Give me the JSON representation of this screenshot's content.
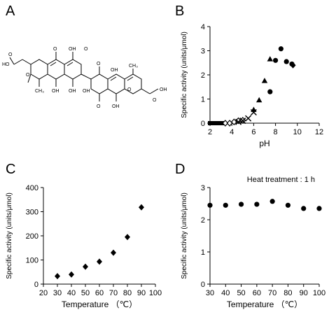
{
  "panels": {
    "a": "A",
    "b": "B",
    "c": "C",
    "d": "D"
  },
  "molecule": {
    "atoms": {
      "o_top_1": "O",
      "oh_1": "OH",
      "oh_2": "OH",
      "oh_3": "OH",
      "o_ring_left": "O",
      "o_bottom_1": "O",
      "o_top_2": "O",
      "o_bottom_2": "O",
      "oh_4": "OH",
      "oh_5": "OH",
      "o_ring_right": "O",
      "acid_left": "HO",
      "acid_left_o": "O",
      "acid_right": "OH",
      "acid_right_o": "O",
      "ch3_left": "CH₃",
      "ch3_right": "CH₃",
      "oh_6": "OH"
    }
  },
  "chart_data": [
    {
      "type": "scatter",
      "title": "",
      "xlabel": "pH",
      "ylabel": "Specific activity (units/μmol)",
      "xlim": [
        2,
        12
      ],
      "ylim": [
        0,
        4
      ],
      "xticks": [
        "2",
        "4",
        "6",
        "8",
        "10",
        "12"
      ],
      "yticks": [
        "0",
        "1",
        "2",
        "3",
        "4"
      ],
      "series": [
        {
          "marker": "square",
          "x": [
            2.0,
            2.2,
            2.4,
            2.6,
            2.8,
            3.0,
            3.2
          ],
          "y": [
            0,
            0,
            0,
            0,
            0,
            0,
            0
          ]
        },
        {
          "marker": "diamond-open",
          "x": [
            3.4,
            3.8,
            4.2,
            4.6,
            5.0
          ],
          "y": [
            0,
            0,
            0.05,
            0.1,
            0.12
          ]
        },
        {
          "marker": "cross",
          "x": [
            4.6,
            5.0,
            5.5,
            6.0
          ],
          "y": [
            0.05,
            0.1,
            0.2,
            0.45
          ]
        },
        {
          "marker": "triangle",
          "x": [
            6.0,
            6.5,
            7.0,
            7.5
          ],
          "y": [
            0.55,
            0.95,
            1.75,
            2.65
          ]
        },
        {
          "marker": "circle",
          "x": [
            7.5,
            8.0,
            8.5,
            9.0,
            9.5
          ],
          "y": [
            1.3,
            2.6,
            3.08,
            2.55,
            2.45
          ]
        },
        {
          "marker": "diamond",
          "x": [
            9.6
          ],
          "y": [
            2.4
          ]
        }
      ]
    },
    {
      "type": "scatter",
      "title": "",
      "xlabel": "Temperature （℃）",
      "ylabel": "Specific activity (units/μmol)",
      "xlim": [
        20,
        100
      ],
      "ylim": [
        0,
        400
      ],
      "xticks": [
        "20",
        "30",
        "40",
        "50",
        "60",
        "70",
        "80",
        "90",
        "100"
      ],
      "yticks": [
        "0",
        "100",
        "200",
        "300",
        "400"
      ],
      "series": [
        {
          "marker": "diamond",
          "x": [
            30,
            40,
            50,
            60,
            70,
            80,
            90
          ],
          "y": [
            33,
            40,
            72,
            93,
            130,
            195,
            318
          ]
        }
      ]
    },
    {
      "type": "scatter",
      "title": "",
      "annotation": "Heat treatment : 1 h",
      "xlabel": "Temperature （℃）",
      "ylabel": "Specific activity (units/μmol)",
      "xlim": [
        30,
        100
      ],
      "ylim": [
        0,
        3
      ],
      "xticks": [
        "30",
        "40",
        "50",
        "60",
        "70",
        "80",
        "90",
        "100"
      ],
      "yticks": [
        "0",
        "1",
        "2",
        "3"
      ],
      "series": [
        {
          "marker": "circle",
          "x": [
            30,
            40,
            50,
            60,
            70,
            80,
            90,
            100
          ],
          "y": [
            2.45,
            2.45,
            2.48,
            2.48,
            2.57,
            2.45,
            2.35,
            2.35
          ]
        }
      ]
    }
  ]
}
